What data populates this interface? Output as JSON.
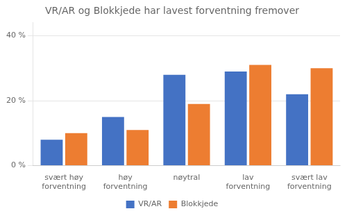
{
  "chart_data": {
    "type": "bar",
    "title": "VR/AR og Blokkjede har lavest forventning fremover",
    "categories": [
      "svært høy\nforventning",
      "høy\nforventning",
      "nøytral",
      "lav\nforventning",
      "svært lav\nforventning"
    ],
    "series": [
      {
        "name": "VR/AR",
        "color": "#4472C4",
        "values": [
          8,
          15,
          28,
          29,
          22
        ]
      },
      {
        "name": "Blokkjede",
        "color": "#ED7D31",
        "values": [
          10,
          11,
          19,
          31,
          30
        ]
      }
    ],
    "ylim": [
      0,
      44
    ],
    "yticks": [
      {
        "value": 0,
        "label": "0 %"
      },
      {
        "value": 20,
        "label": "20 %"
      },
      {
        "value": 40,
        "label": "40 %"
      }
    ],
    "grid": true,
    "legend": "bottom"
  }
}
